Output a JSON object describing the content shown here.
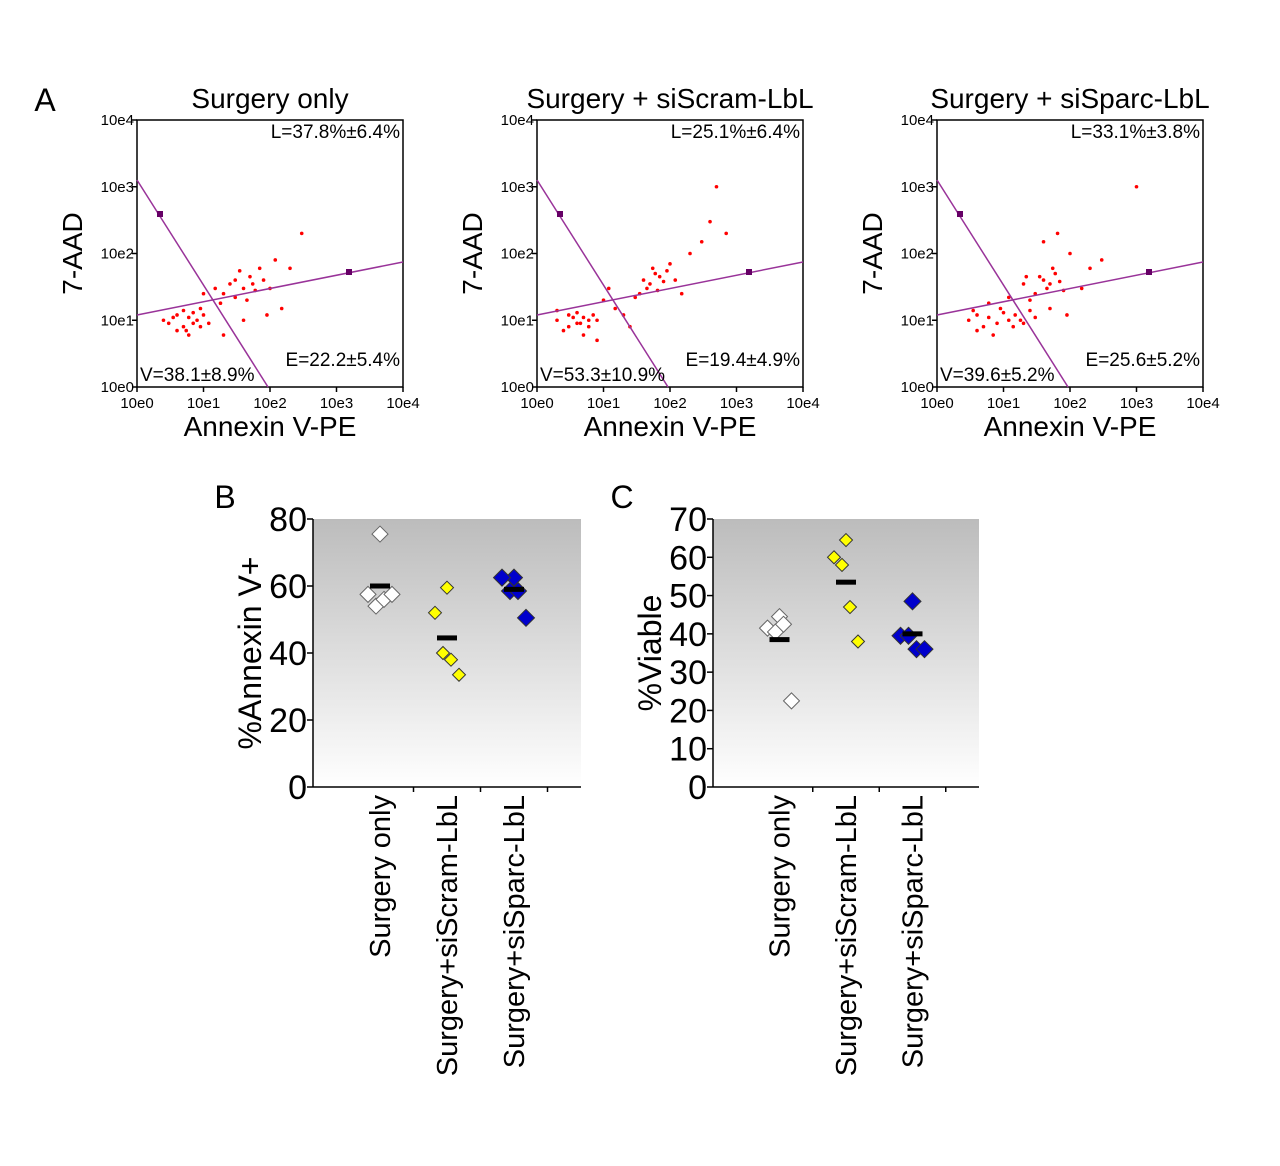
{
  "chart_data": [
    {
      "type": "scatter",
      "panel": "A",
      "title": "Surgery only",
      "xlabel": "Annexin V-PE",
      "ylabel": "7-AAD",
      "log": true,
      "color": "#ff0000",
      "xlim": [
        1,
        10000
      ],
      "ylim": [
        1,
        10000
      ],
      "xticks": [
        {
          "value": 1,
          "label": "10e0"
        },
        {
          "value": 10,
          "label": "10e1"
        },
        {
          "value": 100,
          "label": "10e2"
        },
        {
          "value": 1000,
          "label": "10e3"
        },
        {
          "value": 10000,
          "label": "10e4"
        }
      ],
      "yticks": [
        {
          "value": 1,
          "label": "10e0"
        },
        {
          "value": 10,
          "label": "10e1"
        },
        {
          "value": 100,
          "label": "10e2"
        },
        {
          "value": 1000,
          "label": "10e3"
        },
        {
          "value": 10000,
          "label": "10e4"
        }
      ],
      "annotations": [
        "L=37.8%±6.4%",
        "V=38.1±8.9%",
        "E=22.2±5.4%"
      ],
      "x": [
        3,
        4,
        5,
        6,
        7,
        5,
        8,
        4,
        10,
        6,
        3.5,
        9,
        12,
        7,
        20,
        30,
        40,
        50,
        25,
        60,
        35,
        45,
        80,
        30,
        70,
        100,
        55,
        15,
        150,
        200,
        20,
        90,
        300,
        10,
        40,
        120,
        2.5,
        5.5,
        9,
        18
      ],
      "y": [
        9,
        12,
        8,
        11,
        9,
        14,
        10,
        7,
        12,
        6,
        11,
        8,
        9,
        13,
        25,
        40,
        30,
        45,
        35,
        28,
        55,
        20,
        40,
        22,
        60,
        30,
        35,
        30,
        15,
        60,
        6,
        12,
        200,
        25,
        10,
        80,
        10,
        7,
        15,
        18
      ]
    },
    {
      "type": "scatter",
      "title": "Surgery + siScram-LbL",
      "xlabel": "Annexin V-PE",
      "ylabel": "7-AAD",
      "log": true,
      "color": "#ff0000",
      "xlim": [
        1,
        10000
      ],
      "ylim": [
        1,
        10000
      ],
      "xticks": [
        {
          "value": 1,
          "label": "10e0"
        },
        {
          "value": 10,
          "label": "10e1"
        },
        {
          "value": 100,
          "label": "10e2"
        },
        {
          "value": 1000,
          "label": "10e3"
        },
        {
          "value": 10000,
          "label": "10e4"
        }
      ],
      "yticks": [
        {
          "value": 1,
          "label": "10e0"
        },
        {
          "value": 10,
          "label": "10e1"
        },
        {
          "value": 100,
          "label": "10e2"
        },
        {
          "value": 1000,
          "label": "10e3"
        },
        {
          "value": 10000,
          "label": "10e4"
        }
      ],
      "annotations": [
        "L=25.1%±6.4%",
        "V=53.3±10.9%",
        "E=19.4±4.9%"
      ],
      "x": [
        2,
        3,
        4,
        5,
        3,
        4,
        6,
        2.5,
        5,
        7,
        3.5,
        4.5,
        8,
        2,
        6,
        40,
        50,
        60,
        70,
        45,
        80,
        55,
        35,
        90,
        65,
        30,
        100,
        120,
        200,
        300,
        500,
        15,
        20,
        10,
        25,
        150,
        400,
        12,
        8,
        700
      ],
      "y": [
        10,
        12,
        9,
        11,
        8,
        13,
        10,
        7,
        6,
        12,
        11,
        9,
        10,
        14,
        8,
        40,
        35,
        50,
        45,
        30,
        38,
        60,
        25,
        55,
        28,
        22,
        70,
        40,
        100,
        150,
        1000,
        15,
        12,
        20,
        8,
        25,
        300,
        30,
        5,
        200
      ]
    },
    {
      "type": "scatter",
      "title": "Surgery + siSparc-LbL",
      "xlabel": "Annexin V-PE",
      "ylabel": "7-AAD",
      "log": true,
      "color": "#ff0000",
      "xlim": [
        1,
        10000
      ],
      "ylim": [
        1,
        10000
      ],
      "xticks": [
        {
          "value": 1,
          "label": "10e0"
        },
        {
          "value": 10,
          "label": "10e1"
        },
        {
          "value": 100,
          "label": "10e2"
        },
        {
          "value": 1000,
          "label": "10e3"
        },
        {
          "value": 10000,
          "label": "10e4"
        }
      ],
      "yticks": [
        {
          "value": 1,
          "label": "10e0"
        },
        {
          "value": 10,
          "label": "10e1"
        },
        {
          "value": 100,
          "label": "10e2"
        },
        {
          "value": 1000,
          "label": "10e3"
        },
        {
          "value": 10000,
          "label": "10e4"
        }
      ],
      "annotations": [
        "L=33.1%±3.8%",
        "V=39.6±5.2%",
        "E=25.6±5.2%"
      ],
      "x": [
        3,
        4,
        5,
        6,
        8,
        10,
        12,
        15,
        20,
        25,
        30,
        4,
        7,
        9,
        14,
        18,
        40,
        50,
        35,
        45,
        60,
        30,
        70,
        55,
        80,
        100,
        25,
        150,
        200,
        40,
        300,
        20,
        6,
        12,
        50,
        90,
        1000,
        3.5,
        22,
        65
      ],
      "y": [
        10,
        12,
        8,
        11,
        9,
        13,
        10,
        12,
        9,
        14,
        11,
        7,
        6,
        15,
        8,
        10,
        40,
        35,
        45,
        30,
        50,
        25,
        38,
        60,
        28,
        100,
        20,
        30,
        60,
        150,
        80,
        35,
        18,
        22,
        15,
        12,
        1000,
        14,
        45,
        200
      ]
    },
    {
      "type": "dot",
      "panel": "B",
      "ylabel": "%Annexin V+",
      "categories": [
        "Surgery only",
        "Surgery+siScram-LbL",
        "Surgery+siSparc-LbL"
      ],
      "colors": [
        "#ffffff",
        "#ffff00",
        "#0000cc"
      ],
      "values": [
        [
          75.5,
          57.5,
          54,
          56,
          57.5
        ],
        [
          59.5,
          52,
          40,
          38,
          33.5
        ],
        [
          62.5,
          62.5,
          58.5,
          58.5,
          50.5
        ]
      ],
      "means": [
        60,
        44.5,
        59
      ],
      "ylim": [
        0,
        80
      ],
      "yticks": [
        0,
        20,
        40,
        60,
        80
      ]
    },
    {
      "type": "dot",
      "panel": "C",
      "ylabel": "%Viable",
      "categories": [
        "Surgery only",
        "Surgery+siScram-LbL",
        "Surgery+siSparc-LbL"
      ],
      "colors": [
        "#ffffff",
        "#ffff00",
        "#0000cc"
      ],
      "values": [
        [
          44.5,
          41.5,
          40.5,
          42.5,
          22.5
        ],
        [
          64.5,
          60,
          58,
          47,
          38
        ],
        [
          48.5,
          39.5,
          39.5,
          36,
          36
        ]
      ],
      "means": [
        38.5,
        53.5,
        40
      ],
      "ylim": [
        0,
        70
      ],
      "yticks": [
        0,
        10,
        20,
        30,
        40,
        50,
        60,
        70
      ]
    }
  ]
}
